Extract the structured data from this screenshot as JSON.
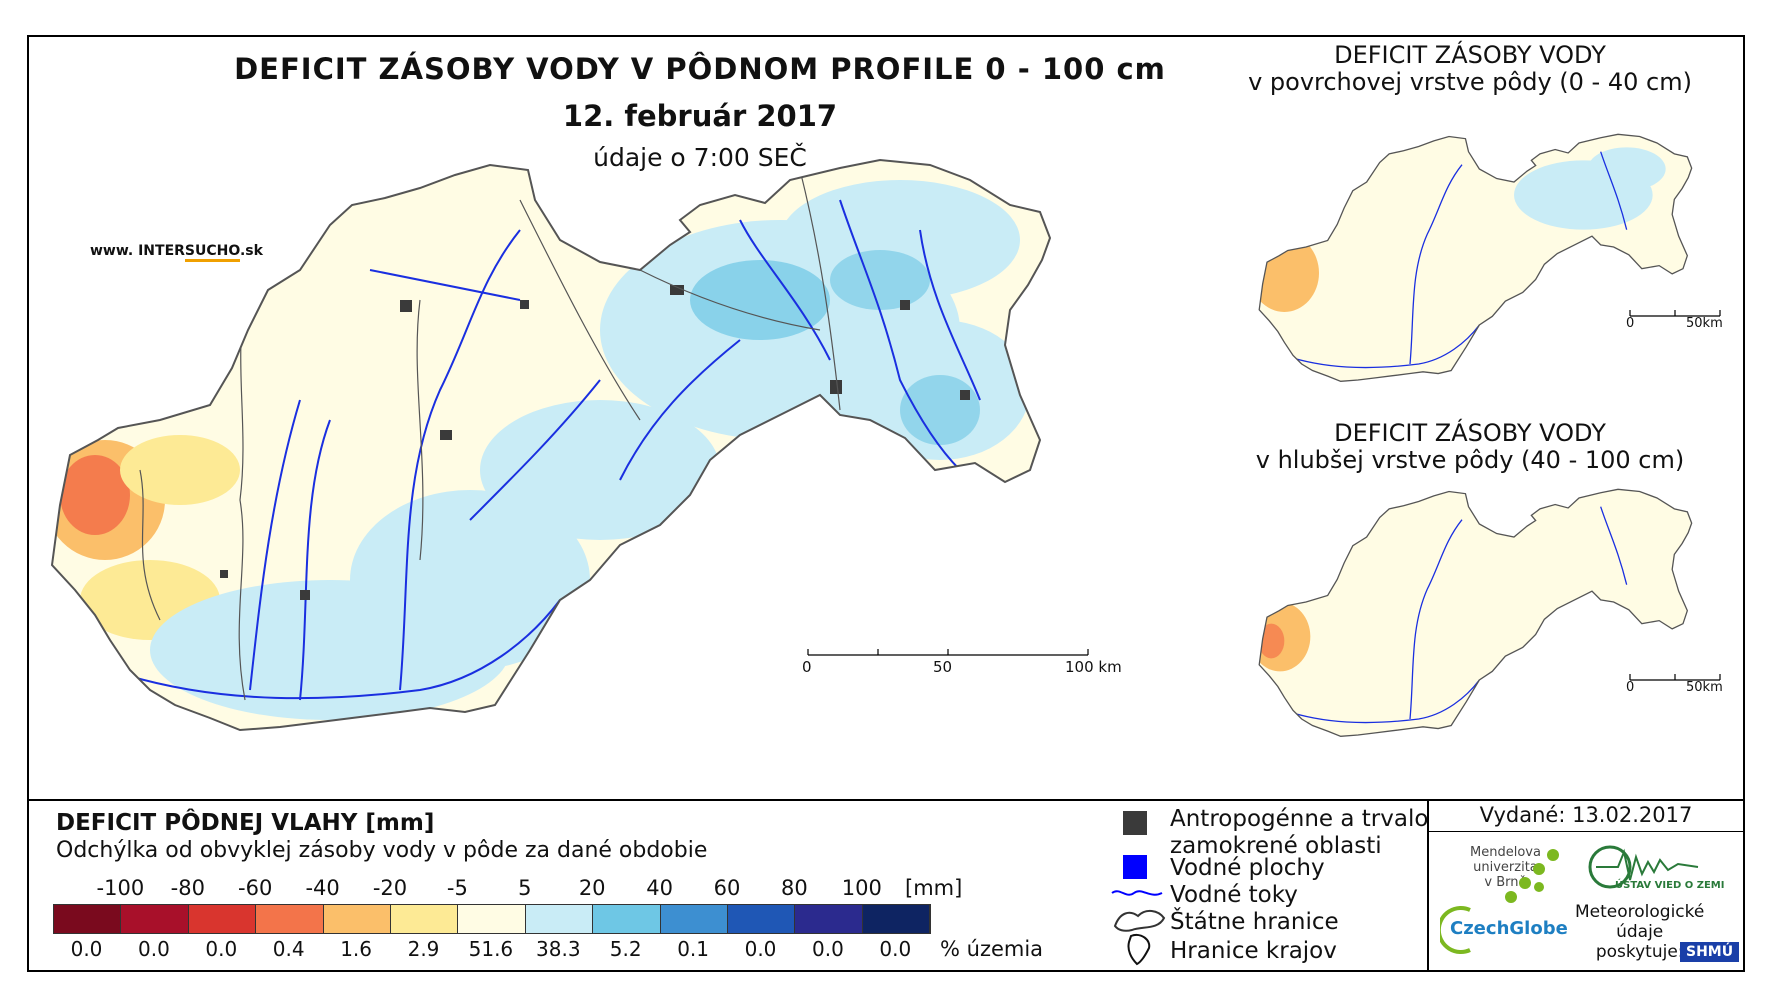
{
  "title": "DEFICIT ZÁSOBY VODY V PÔDNOM PROFILE 0 - 100 cm",
  "date": "12. február 2017",
  "time_note": "údaje o 7:00 SEČ",
  "website": {
    "prefix": "www. INTER",
    "highlight": "SUCHO",
    "suffix": ".sk"
  },
  "main_scale": {
    "ticks": [
      "0",
      "50",
      "100 km"
    ]
  },
  "side_maps": [
    {
      "title_line1": "DEFICIT ZÁSOBY VODY",
      "title_line2": "v povrchovej vrstve pôdy (0 - 40 cm)",
      "scale": [
        "0",
        "50km"
      ]
    },
    {
      "title_line1": "DEFICIT ZÁSOBY VODY",
      "title_line2": "v hlubšej vrstve pôdy (40 - 100 cm)",
      "scale": [
        "0",
        "50km"
      ]
    }
  ],
  "legend": {
    "title": "DEFICIT PÔDNEJ VLAHY [mm]",
    "subtitle": "Odchýlka od obvyklej zásoby vody v pôde za dané obdobie",
    "ticks": [
      "-100",
      "-80",
      "-60",
      "-40",
      "-20",
      "-5",
      "5",
      "20",
      "40",
      "60",
      "80",
      "100"
    ],
    "unit": "[mm]",
    "colors": [
      "#7a0a1e",
      "#a8102a",
      "#d9352e",
      "#f3744a",
      "#fbbf6a",
      "#fdea95",
      "#fffce4",
      "#c9ecf6",
      "#6ec7e5",
      "#3d8fd1",
      "#1f57b5",
      "#2b2a8e",
      "#0e2462"
    ],
    "percentages": [
      "0.0",
      "0.0",
      "0.0",
      "0.4",
      "1.6",
      "2.9",
      "51.6",
      "38.3",
      "5.2",
      "0.1",
      "0.0",
      "0.0",
      "0.0"
    ],
    "percent_label": "% územia"
  },
  "key": {
    "anthro_line1": "Antropogénne a trvalo",
    "anthro_line2": "zamokrené oblasti",
    "water_areas": "Vodné plochy",
    "streams": "Vodné toky",
    "state_border": "Štátne hranice",
    "region_border": "Hranice krajov"
  },
  "issued": "Vydané: 13.02.2017",
  "logos": {
    "mendel": [
      "Mendelova",
      "univerzita",
      "v Brně"
    ],
    "czechglobe": "CzechGlobe",
    "uvoz": "ÚSTAV VIED O ZEMI",
    "meteo": [
      "Meteorologické",
      "údaje",
      "poskytuje:"
    ],
    "shmu": "SHMÚ"
  }
}
